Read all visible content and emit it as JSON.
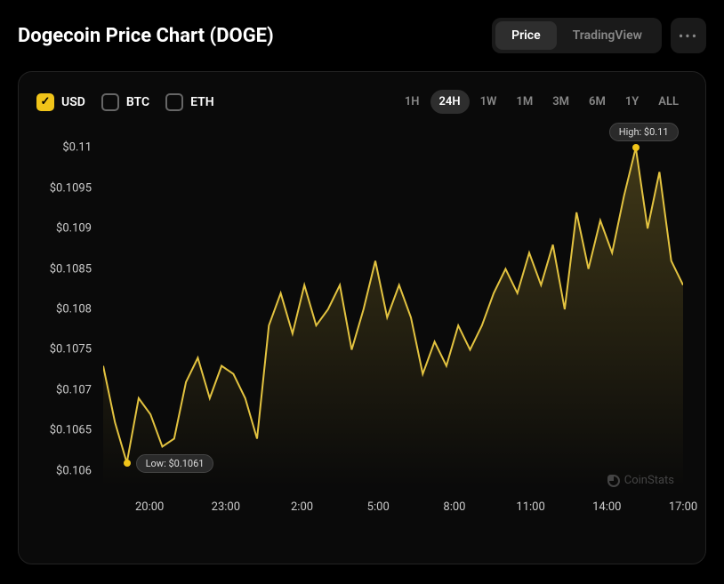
{
  "title": "Dogecoin Price Chart (DOGE)",
  "view_tabs": {
    "price": "Price",
    "tradingview": "TradingView",
    "active": "price"
  },
  "currencies": [
    {
      "label": "USD",
      "checked": true
    },
    {
      "label": "BTC",
      "checked": false
    },
    {
      "label": "ETH",
      "checked": false
    }
  ],
  "timeframes": [
    "1H",
    "24H",
    "1W",
    "1M",
    "3M",
    "6M",
    "1Y",
    "ALL"
  ],
  "timeframe_active": "24H",
  "chart": {
    "type": "line",
    "line_color": "#e3c340",
    "line_width": 2,
    "area_fill_top": "rgba(227,195,64,0.25)",
    "area_fill_bottom": "rgba(227,195,64,0.0)",
    "background_color": "#0a0a0a",
    "text_color": "#cccccc",
    "marker_color": "#f0c419",
    "y_ticks": [
      {
        "v": 0.11,
        "label": "$0.11"
      },
      {
        "v": 0.1095,
        "label": "$0.1095"
      },
      {
        "v": 0.109,
        "label": "$0.109"
      },
      {
        "v": 0.1085,
        "label": "$0.1085"
      },
      {
        "v": 0.108,
        "label": "$0.108"
      },
      {
        "v": 0.1075,
        "label": "$0.1075"
      },
      {
        "v": 0.107,
        "label": "$0.107"
      },
      {
        "v": 0.1065,
        "label": "$0.1065"
      },
      {
        "v": 0.106,
        "label": "$0.106"
      }
    ],
    "ylim": [
      0.1058,
      0.1102
    ],
    "x_ticks": [
      "20:00",
      "23:00",
      "2:00",
      "5:00",
      "8:00",
      "11:00",
      "14:00",
      "17:00"
    ],
    "x_count": 24,
    "series": [
      0.1073,
      0.1066,
      0.1061,
      0.1069,
      0.1067,
      0.1063,
      0.1064,
      0.1071,
      0.1074,
      0.1069,
      0.1073,
      0.1072,
      0.1069,
      0.1064,
      0.1078,
      0.1082,
      0.1077,
      0.1083,
      0.1078,
      0.108,
      0.1083,
      0.1075,
      0.108,
      0.1086,
      0.1079,
      0.1083,
      0.1079,
      0.1072,
      0.1076,
      0.1073,
      0.1078,
      0.1075,
      0.1078,
      0.1082,
      0.1085,
      0.1082,
      0.1087,
      0.1083,
      0.1088,
      0.108,
      0.1092,
      0.1085,
      0.1091,
      0.1087,
      0.1094,
      0.11,
      0.109,
      0.1097,
      0.1086,
      0.1083
    ],
    "high": {
      "label": "High: $0.11",
      "idx": 45,
      "value": 0.11
    },
    "low": {
      "label": "Low: $0.1061",
      "idx": 2,
      "value": 0.1061
    }
  },
  "watermark": "CoinStats"
}
